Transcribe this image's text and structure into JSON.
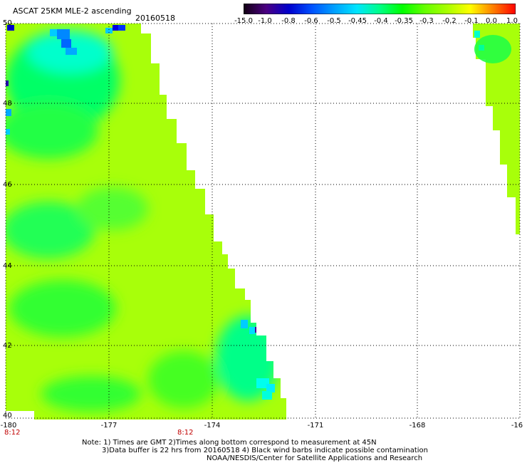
{
  "header": {
    "title": "ASCAT 25KM MLE-2 ascending",
    "date": "20160518"
  },
  "colorbar": {
    "labels": [
      "-15.0",
      "-1.0",
      "-0.8",
      "-0.6",
      "-0.5",
      "-0.45",
      "-0.4",
      "-0.35",
      "-0.3",
      "-0.2",
      "-0.1",
      "0.0",
      "1.0"
    ],
    "colors": [
      "#120012",
      "#4b0082",
      "#0000cd",
      "#0050ff",
      "#00a0ff",
      "#00e5ff",
      "#00ff88",
      "#00ff00",
      "#66ff00",
      "#aaff00",
      "#ffff00",
      "#ff7f00",
      "#ff0000"
    ]
  },
  "map": {
    "x_ticks": [
      "-180",
      "-177",
      "-174",
      "-171",
      "-168",
      "-16"
    ],
    "y_ticks": [
      "50",
      "48",
      "46",
      "44",
      "42",
      "40"
    ],
    "time_labels": [
      "8:12",
      "8:12"
    ],
    "fill_color": "#a8ff0a"
  },
  "footer": {
    "line1": "Note: 1) Times are GMT 2)Times along bottom correspond to measurement at 45N",
    "line2": "3)Data buffer is 22 hrs from 20160518 4) Black wind barbs indicate possible contamination",
    "line3": "NOAA/NESDIS/Center for Satellite Applications and Research"
  }
}
